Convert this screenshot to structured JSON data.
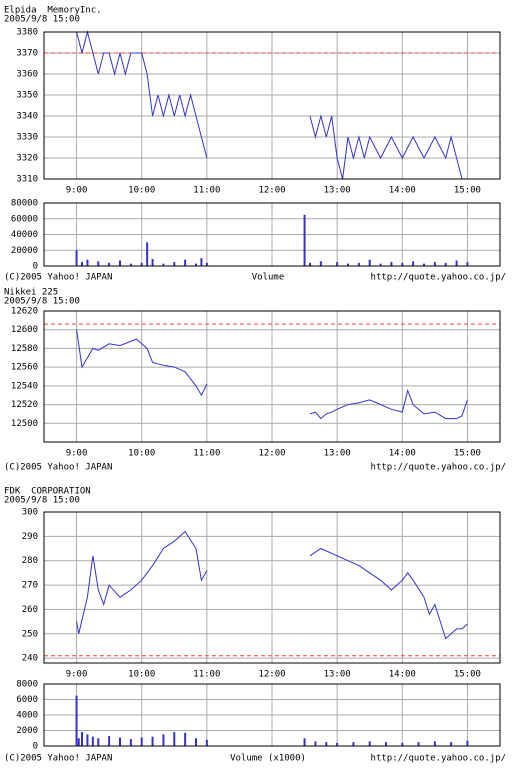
{
  "chart_data": [
    {
      "type": "line",
      "title": "Elpida  MemoryInc.",
      "subtitle": "2005/9/8 15:00",
      "color": "#3333cc",
      "x": [
        "9:00",
        "9:05",
        "9:10",
        "9:15",
        "9:20",
        "9:25",
        "9:30",
        "9:35",
        "9:40",
        "9:45",
        "9:50",
        "9:55",
        "10:00",
        "10:05",
        "10:10",
        "10:15",
        "10:20",
        "10:25",
        "10:30",
        "10:35",
        "10:40",
        "10:45",
        "10:50",
        "10:55",
        "11:00",
        "11:45",
        "12:35",
        "12:40",
        "12:45",
        "12:50",
        "12:55",
        "13:00",
        "13:05",
        "13:10",
        "13:15",
        "13:20",
        "13:25",
        "13:30",
        "13:40",
        "13:50",
        "14:00",
        "14:10",
        "14:20",
        "14:30",
        "14:40",
        "14:45",
        "14:50",
        "14:55",
        "15:00"
      ],
      "values": [
        3380,
        3370,
        3380,
        3370,
        3360,
        3370,
        3370,
        3360,
        3370,
        3360,
        3370,
        3370,
        3370,
        3360,
        3340,
        3350,
        3340,
        3350,
        3340,
        3350,
        3340,
        3350,
        3340,
        3330,
        3320,
        null,
        3340,
        3330,
        3340,
        3330,
        3340,
        3320,
        3310,
        3330,
        3320,
        3330,
        3320,
        3330,
        3320,
        3330,
        3320,
        3330,
        3320,
        3330,
        3320,
        3330,
        3320,
        3310,
        3310
      ],
      "xlim": [
        "8:30",
        "15:30"
      ],
      "xticks": [
        "9:00",
        "10:00",
        "11:00",
        "12:00",
        "13:00",
        "14:00",
        "15:00"
      ],
      "ylim": [
        3310,
        3380
      ],
      "yticks": [
        3310,
        3320,
        3330,
        3340,
        3350,
        3360,
        3370,
        3380
      ],
      "reference_line": {
        "value": 3370,
        "color": "#ee4444"
      },
      "grid": true
    },
    {
      "type": "bar",
      "color": "#3333cc",
      "x": [
        "9:00",
        "9:05",
        "9:10",
        "9:20",
        "9:30",
        "9:40",
        "9:50",
        "10:00",
        "10:05",
        "10:10",
        "10:20",
        "10:30",
        "10:40",
        "10:50",
        "10:55",
        "11:00",
        "12:30",
        "12:35",
        "12:45",
        "13:00",
        "13:10",
        "13:20",
        "13:30",
        "13:40",
        "13:50",
        "14:00",
        "14:10",
        "14:20",
        "14:30",
        "14:40",
        "14:50",
        "15:00"
      ],
      "values": [
        20000,
        5000,
        8000,
        6000,
        4000,
        7000,
        3000,
        4000,
        30000,
        9000,
        3000,
        5000,
        8000,
        3000,
        10000,
        4000,
        65000,
        4000,
        6000,
        5000,
        3000,
        4000,
        8000,
        3000,
        5000,
        4000,
        6000,
        3000,
        5000,
        4000,
        7000,
        5000
      ],
      "xlim": [
        "8:30",
        "15:30"
      ],
      "xticks": [
        "9:00",
        "10:00",
        "11:00",
        "12:00",
        "13:00",
        "14:00",
        "15:00"
      ],
      "xtick_labels": false,
      "ylim": [
        0,
        80000
      ],
      "yticks": [
        0,
        20000,
        40000,
        60000,
        80000
      ],
      "grid": true,
      "footer": {
        "copyright": "(C)2005 Yahoo! JAPAN",
        "label": "Volume",
        "source": "http://quote.yahoo.co.jp/"
      }
    },
    {
      "type": "line",
      "title": "Nikkei 225",
      "subtitle": "2005/9/8 15:00",
      "color": "#3333cc",
      "x": [
        "9:00",
        "9:05",
        "9:10",
        "9:15",
        "9:20",
        "9:30",
        "9:40",
        "9:55",
        "10:05",
        "10:10",
        "10:20",
        "10:30",
        "10:40",
        "10:50",
        "10:55",
        "11:00",
        "11:45",
        "12:35",
        "12:40",
        "12:45",
        "12:50",
        "12:55",
        "13:00",
        "13:10",
        "13:20",
        "13:30",
        "13:40",
        "13:50",
        "14:00",
        "14:05",
        "14:10",
        "14:20",
        "14:30",
        "14:40",
        "14:50",
        "14:55",
        "15:00"
      ],
      "values": [
        12600,
        12560,
        12570,
        12580,
        12578,
        12585,
        12583,
        12590,
        12580,
        12565,
        12562,
        12560,
        12555,
        12540,
        12530,
        12542,
        null,
        12510,
        12512,
        12505,
        12510,
        12512,
        12515,
        12520,
        12522,
        12525,
        12520,
        12515,
        12512,
        12535,
        12520,
        12510,
        12512,
        12505,
        12505,
        12508,
        12525
      ],
      "xlim": [
        "8:30",
        "15:30"
      ],
      "xticks": [
        "9:00",
        "10:00",
        "11:00",
        "12:00",
        "13:00",
        "14:00",
        "15:00"
      ],
      "ylim": [
        12480,
        12620
      ],
      "yticks": [
        12500,
        12520,
        12540,
        12560,
        12580,
        12600,
        12620
      ],
      "reference_line": {
        "value": 12606,
        "color": "#ee4444"
      },
      "grid": true,
      "footer": {
        "copyright": "(C)2005 Yahoo! JAPAN",
        "source": "http://quote.yahoo.co.jp/"
      }
    },
    {
      "type": "line",
      "title": "FDK  CORPORATION",
      "subtitle": "2005/9/8 15:00",
      "color": "#3333cc",
      "x": [
        "9:00",
        "9:02",
        "9:10",
        "9:15",
        "9:20",
        "9:25",
        "9:30",
        "9:40",
        "9:50",
        "10:00",
        "10:10",
        "10:20",
        "10:30",
        "10:40",
        "10:50",
        "10:55",
        "11:00",
        "11:45",
        "12:35",
        "12:45",
        "13:00",
        "13:10",
        "13:20",
        "13:30",
        "13:40",
        "13:50",
        "14:00",
        "14:05",
        "14:10",
        "14:20",
        "14:25",
        "14:30",
        "14:35",
        "14:40",
        "14:45",
        "14:50",
        "14:55",
        "15:00"
      ],
      "values": [
        255,
        250,
        265,
        282,
        268,
        262,
        270,
        265,
        268,
        272,
        278,
        285,
        288,
        292,
        285,
        272,
        276,
        null,
        282,
        285,
        282,
        280,
        278,
        275,
        272,
        268,
        272,
        275,
        272,
        265,
        258,
        262,
        255,
        248,
        250,
        252,
        252,
        254
      ],
      "xlim": [
        "8:30",
        "15:30"
      ],
      "xticks": [
        "9:00",
        "10:00",
        "11:00",
        "12:00",
        "13:00",
        "14:00",
        "15:00"
      ],
      "ylim": [
        238,
        300
      ],
      "yticks": [
        240,
        250,
        260,
        270,
        280,
        290,
        300
      ],
      "reference_line": {
        "value": 241,
        "color": "#ee4444"
      },
      "grid": true
    },
    {
      "type": "bar",
      "color": "#3333cc",
      "x": [
        "9:00",
        "9:02",
        "9:05",
        "9:10",
        "9:15",
        "9:20",
        "9:30",
        "9:40",
        "9:50",
        "10:00",
        "10:10",
        "10:20",
        "10:30",
        "10:40",
        "10:50",
        "11:00",
        "12:30",
        "12:40",
        "12:50",
        "13:00",
        "13:15",
        "13:30",
        "13:45",
        "14:00",
        "14:15",
        "14:30",
        "14:45",
        "15:00"
      ],
      "values": [
        6500,
        1000,
        1800,
        1500,
        1200,
        1000,
        1300,
        1100,
        900,
        1100,
        1200,
        1500,
        1800,
        1700,
        1000,
        800,
        1000,
        600,
        500,
        400,
        500,
        600,
        500,
        400,
        500,
        600,
        500,
        700
      ],
      "xlim": [
        "8:30",
        "15:30"
      ],
      "xticks": [
        "9:00",
        "10:00",
        "11:00",
        "12:00",
        "13:00",
        "14:00",
        "15:00"
      ],
      "xtick_labels": false,
      "ylim": [
        0,
        8000
      ],
      "yticks": [
        0,
        2000,
        4000,
        6000,
        8000
      ],
      "grid": true,
      "footer": {
        "copyright": "(C)2005 Yahoo! JAPAN",
        "label": "Volume (x1000)",
        "source": "http://quote.yahoo.co.jp/"
      }
    }
  ]
}
